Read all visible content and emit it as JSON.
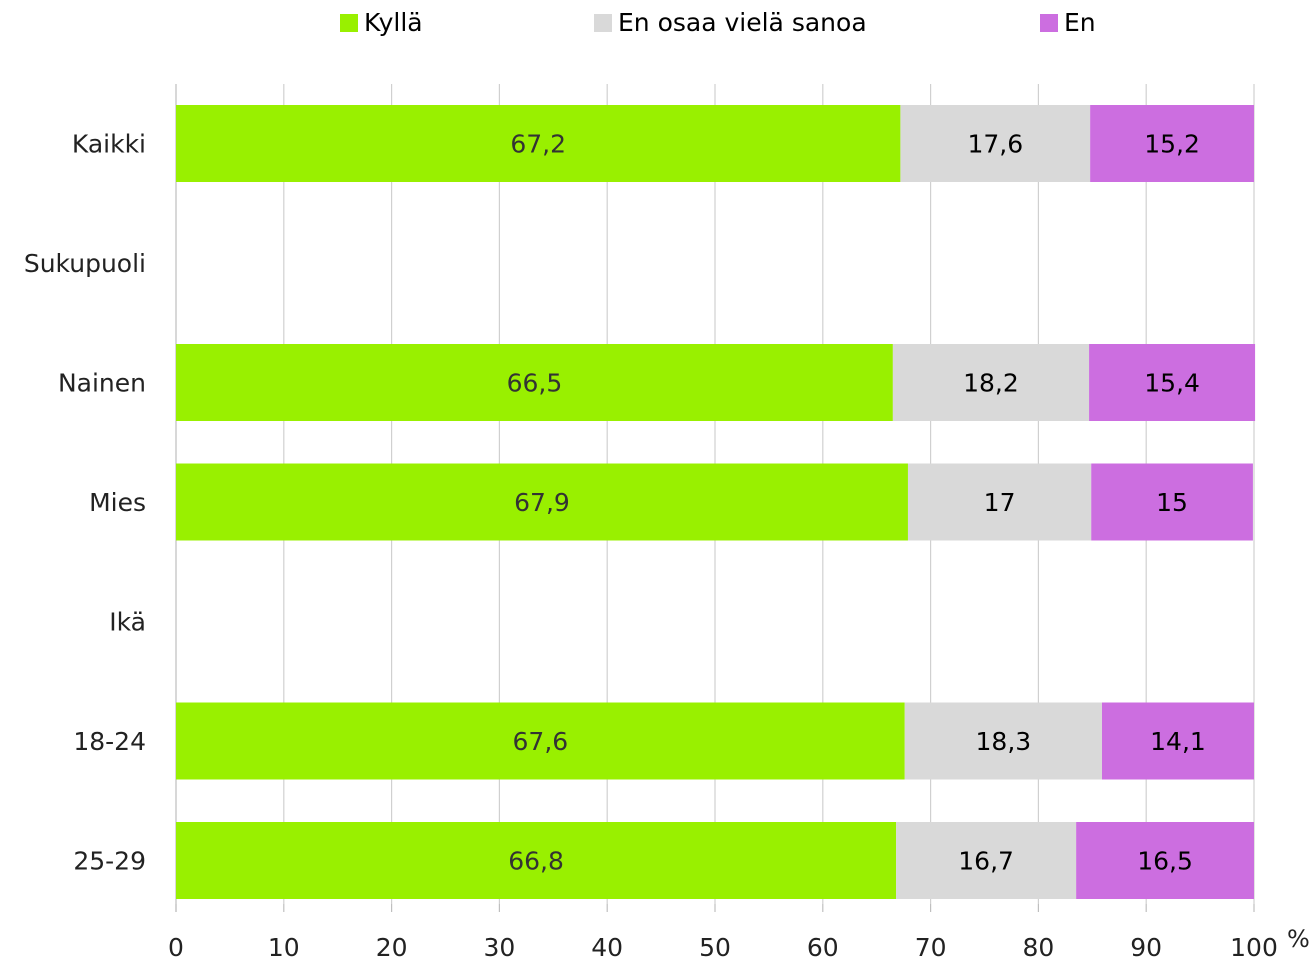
{
  "chart_data": {
    "type": "bar",
    "orientation": "horizontal",
    "stacked": true,
    "categories": [
      "Kaikki",
      "Sukupuoli",
      "Nainen",
      "Mies",
      "Ikä",
      "18-24",
      "25-29"
    ],
    "series": [
      {
        "name": "Kyllä",
        "color": "#99f000",
        "values": [
          67.2,
          null,
          66.5,
          67.9,
          null,
          67.6,
          66.8
        ]
      },
      {
        "name": "En osaa vielä sanoa",
        "color": "#d9d9d9",
        "values": [
          17.6,
          null,
          18.2,
          17,
          null,
          18.3,
          16.7
        ]
      },
      {
        "name": "En",
        "color": "#cc6ee0",
        "values": [
          15.2,
          null,
          15.4,
          15,
          null,
          14.1,
          16.5
        ]
      }
    ],
    "xlim": [
      0,
      100
    ],
    "xticks": [
      "0",
      "10",
      "20",
      "30",
      "40",
      "50",
      "60",
      "70",
      "80",
      "90",
      "100"
    ],
    "xunit": "%",
    "grid": true,
    "legend_position": "top"
  }
}
